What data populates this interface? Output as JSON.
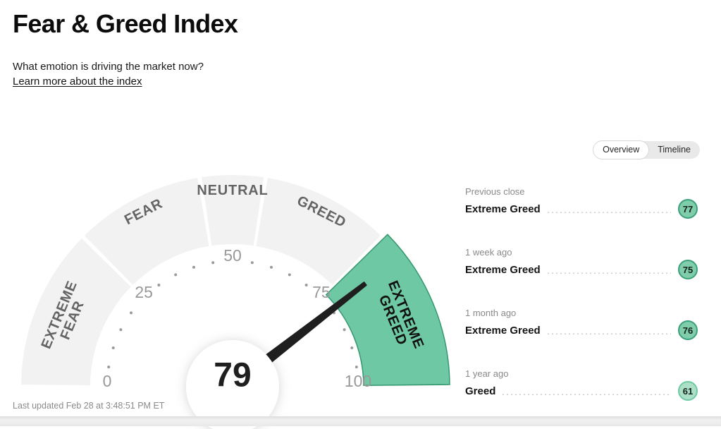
{
  "header": {
    "title": "Fear & Greed Index",
    "subtitle": "What emotion is driving the market now?",
    "link_label": "Learn more about the index"
  },
  "view_toggle": {
    "options": [
      "Overview",
      "Timeline"
    ],
    "selected": "Overview"
  },
  "chart_data": {
    "type": "gauge",
    "title": "Fear & Greed Index",
    "value": 79,
    "value_label": "79",
    "current_rating": "Extreme Greed",
    "min": 0,
    "max": 100,
    "tick_step": 5,
    "major_tick_labels": [
      0,
      25,
      50,
      75,
      100
    ],
    "segments": [
      {
        "label": "EXTREME FEAR",
        "lines": [
          "EXTREME",
          "FEAR"
        ],
        "from": 0,
        "to": 25,
        "active": false
      },
      {
        "label": "FEAR",
        "lines": [
          "FEAR"
        ],
        "from": 25,
        "to": 45,
        "active": false
      },
      {
        "label": "NEUTRAL",
        "lines": [
          "NEUTRAL"
        ],
        "from": 45,
        "to": 55,
        "active": false
      },
      {
        "label": "GREED",
        "lines": [
          "GREED"
        ],
        "from": 55,
        "to": 75,
        "active": false
      },
      {
        "label": "EXTREME GREED",
        "lines": [
          "EXTREME",
          "GREED"
        ],
        "from": 75,
        "to": 100,
        "active": true
      }
    ],
    "colors": {
      "segment_inactive": "#F2F2F2",
      "segment_active": "#6FC8A4",
      "segment_active_border": "#33986F",
      "needle": "#1F1F1F",
      "tick": "#9A9A9A",
      "tick_label": "#999999",
      "segment_label": "#646464",
      "segment_label_active": "#111111",
      "center_value": "#1F1F1F"
    }
  },
  "history": {
    "rows": [
      {
        "period": "Previous close",
        "label": "Extreme Greed",
        "value": "77",
        "tone": "strong"
      },
      {
        "period": "1 week ago",
        "label": "Extreme Greed",
        "value": "75",
        "tone": "strong"
      },
      {
        "period": "1 month ago",
        "label": "Extreme Greed",
        "value": "76",
        "tone": "strong"
      },
      {
        "period": "1 year ago",
        "label": "Greed",
        "value": "61",
        "tone": "light"
      }
    ],
    "badge_colors": {
      "strong": {
        "fill": "#7FCDAA",
        "border": "#3E9F7B"
      },
      "light": {
        "fill": "#ABE0C6",
        "border": "#6FC8A4"
      }
    }
  },
  "footer": {
    "last_updated": "Last updated Feb 28 at 3:48:51 PM ET"
  }
}
